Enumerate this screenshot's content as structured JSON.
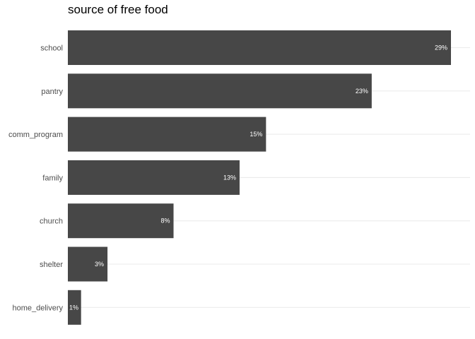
{
  "chart_data": {
    "type": "bar",
    "orientation": "horizontal",
    "title": "source of free food",
    "xlabel": "",
    "ylabel": "",
    "categories": [
      "school",
      "pantry",
      "comm_program",
      "family",
      "church",
      "shelter",
      "home_delivery"
    ],
    "values": [
      29,
      23,
      15,
      13,
      8,
      3,
      1
    ],
    "value_labels": [
      "29%",
      "23%",
      "15%",
      "13%",
      "8%",
      "3%",
      "1%"
    ],
    "xlim": [
      0,
      29
    ],
    "grid": "horizontal major lines",
    "legend": "none",
    "bar_color": "#474747",
    "label_color": "#ffffff"
  }
}
